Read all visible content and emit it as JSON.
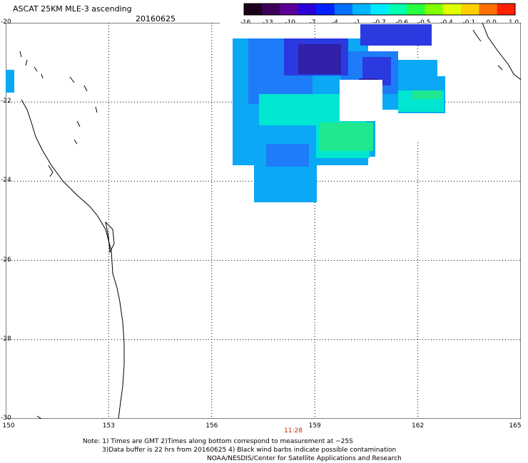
{
  "title": "ASCAT 25KM MLE-3 ascending",
  "date": "20160625",
  "colorbar": {
    "ticks": [
      "-16",
      "-13",
      "-10",
      "-7",
      "-4",
      "-1",
      "-0.7",
      "-0.6",
      "-0.5",
      "-0.4",
      "-0.1",
      "0.0",
      "1.0"
    ],
    "colors": [
      "#1a001a",
      "#3c0058",
      "#5a0096",
      "#2a00d8",
      "#0020ff",
      "#0070ff",
      "#00b4ff",
      "#00eaff",
      "#00ffb0",
      "#28ff40",
      "#80ff00",
      "#e0ff00",
      "#ffd000",
      "#ff7000",
      "#ff2000"
    ]
  },
  "lat_labels": [
    "-20",
    "-22",
    "-24",
    "-26",
    "-28",
    "-30"
  ],
  "lon_labels": [
    "150",
    "153",
    "156",
    "159",
    "162",
    "165"
  ],
  "time_label": "11:28",
  "notes": [
    "Note: 1) Times are GMT 2)Times along bottom correspond to measurement at ~25S",
    "3)Data buffer is 22 hrs from 20160625 4) Black wind barbs indicate possible contamination",
    "NOAA/NESDIS/Center for Satellite Applications and Research"
  ]
}
